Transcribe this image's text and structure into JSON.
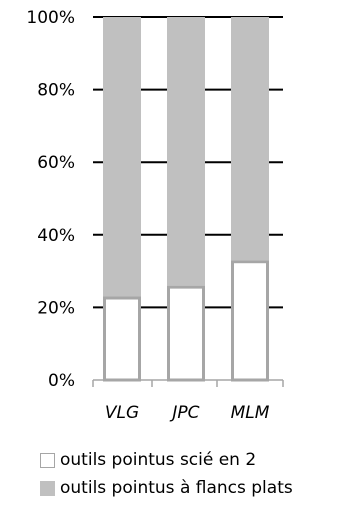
{
  "chart_data": {
    "type": "bar",
    "stacked": true,
    "categories": [
      "VLG",
      "JPC",
      "MLM"
    ],
    "series": [
      {
        "name": "outils pointus scié en 2",
        "values": [
          23,
          26,
          33
        ],
        "color": "#ffffff",
        "stroke": "#a6a6a6"
      },
      {
        "name": "outils pointus à flancs plats",
        "values": [
          77,
          74,
          67
        ],
        "color": "#c0c0c0",
        "stroke": "#c0c0c0"
      }
    ],
    "y_ticks": [
      "0%",
      "20%",
      "40%",
      "60%",
      "80%",
      "100%"
    ],
    "ylim": [
      0,
      100
    ],
    "gridlines": true,
    "legend_position": "bottom"
  }
}
